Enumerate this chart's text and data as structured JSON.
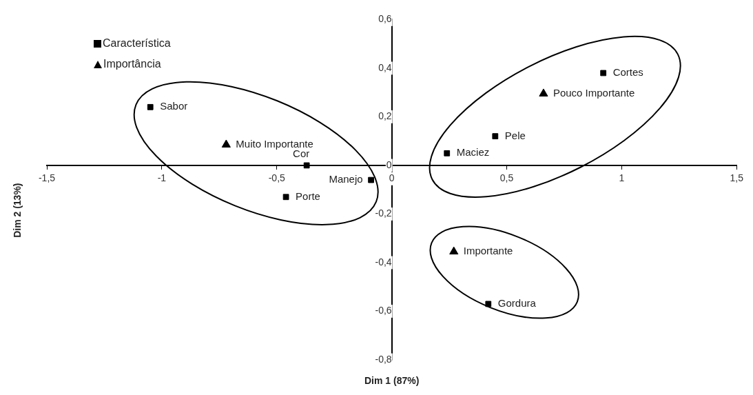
{
  "chart_data": {
    "type": "scatter",
    "xlabel": "Dim 1 (87%)",
    "ylabel": "Dim 2 (13%)",
    "series": [
      {
        "name": "Característica",
        "color": "#000000",
        "marker": "square",
        "x": [
          -1.05,
          -0.37,
          -0.09,
          -0.46,
          0.24,
          0.45,
          0.92,
          0.42
        ],
        "values": [
          0.24,
          0,
          -0.06,
          -0.13,
          0.05,
          0.12,
          0.38,
          -0.57
        ]
      },
      {
        "name": "Importância",
        "color": "#000000",
        "marker": "triangle",
        "x": [
          -0.72,
          0.66,
          0.27
        ],
        "values": [
          0.085,
          0.295,
          -0.355
        ]
      }
    ],
    "annotations": [
      {
        "text": "Sabor",
        "x": -1.05,
        "y": 0.24
      },
      {
        "text": "Cor",
        "x": -0.37,
        "y": 0
      },
      {
        "text": "Manejo",
        "x": -0.09,
        "y": -0.06
      },
      {
        "text": "Porte",
        "x": -0.46,
        "y": -0.13
      },
      {
        "text": "Maciez",
        "x": 0.24,
        "y": 0.05
      },
      {
        "text": "Pele",
        "x": 0.45,
        "y": 0.12
      },
      {
        "text": "Cortes",
        "x": 0.92,
        "y": 0.38
      },
      {
        "text": "Gordura",
        "x": 0.42,
        "y": -0.57
      },
      {
        "text": "Muito Importante",
        "x": -0.72,
        "y": 0.085
      },
      {
        "text": "Pouco Importante",
        "x": 0.66,
        "y": 0.295
      },
      {
        "text": "Importante",
        "x": 0.27,
        "y": -0.355
      }
    ],
    "xlim": [
      -1.5,
      1.5
    ],
    "xticks": [
      {
        "value": -1.5,
        "label": "-1,5"
      },
      {
        "value": -1,
        "label": "-1"
      },
      {
        "value": -0.5,
        "label": "-0,5"
      },
      {
        "value": 0,
        "label": "0"
      },
      {
        "value": 0.5,
        "label": "0,5"
      },
      {
        "value": 1,
        "label": "1"
      },
      {
        "value": 1.5,
        "label": "1,5"
      }
    ],
    "ylim": [
      -0.8,
      0.6
    ],
    "yticks": [
      {
        "value": -0.8,
        "label": "-0,8"
      },
      {
        "value": -0.6,
        "label": "-0,6"
      },
      {
        "value": -0.4,
        "label": "-0,4"
      },
      {
        "value": -0.2,
        "label": "-0,2"
      },
      {
        "value": 0,
        "label": "0"
      },
      {
        "value": 0.2,
        "label": "0,2"
      },
      {
        "value": 0.4,
        "label": "0,4"
      },
      {
        "value": 0.6,
        "label": "0,6"
      }
    ],
    "grid": false,
    "legend": "top left"
  }
}
